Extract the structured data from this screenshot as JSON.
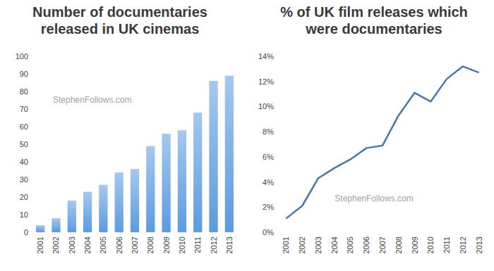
{
  "chart_data": [
    {
      "type": "bar",
      "title": "Number of documentaries\nreleased in UK cinemas",
      "annotations": [
        "StephenFollows.com"
      ],
      "categories": [
        "2001",
        "2002",
        "2003",
        "2004",
        "2005",
        "2006",
        "2007",
        "2008",
        "2009",
        "2010",
        "2011",
        "2012",
        "2013"
      ],
      "values": [
        4,
        8,
        18,
        23,
        27,
        34,
        36,
        49,
        56,
        58,
        68,
        86,
        89
      ],
      "color": "#5b9be0",
      "ylim": [
        0,
        100
      ],
      "yticks": [
        0,
        10,
        20,
        30,
        40,
        50,
        60,
        70,
        80,
        90,
        100
      ],
      "grid": false
    },
    {
      "type": "line",
      "title": "% of UK film releases which\nwere documentaries",
      "annotations": [
        "StephenFollows.com"
      ],
      "categories": [
        "2001",
        "2002",
        "2003",
        "2004",
        "2005",
        "2006",
        "2007",
        "2008",
        "2009",
        "2010",
        "2011",
        "2012",
        "2013"
      ],
      "values": [
        1.1,
        2.1,
        4.3,
        5.1,
        5.8,
        6.7,
        6.9,
        9.3,
        11.1,
        10.4,
        12.2,
        13.2,
        12.7
      ],
      "color": "#4a76a8",
      "ylim": [
        0,
        14
      ],
      "yticks": [
        {
          "value": 0,
          "label": "0%"
        },
        {
          "value": 2,
          "label": "2%"
        },
        {
          "value": 4,
          "label": "4%"
        },
        {
          "value": 6,
          "label": "6%"
        },
        {
          "value": 8,
          "label": "8%"
        },
        {
          "value": 10,
          "label": "10%"
        },
        {
          "value": 12,
          "label": "12%"
        },
        {
          "value": 14,
          "label": "14%"
        }
      ],
      "grid": false
    }
  ]
}
